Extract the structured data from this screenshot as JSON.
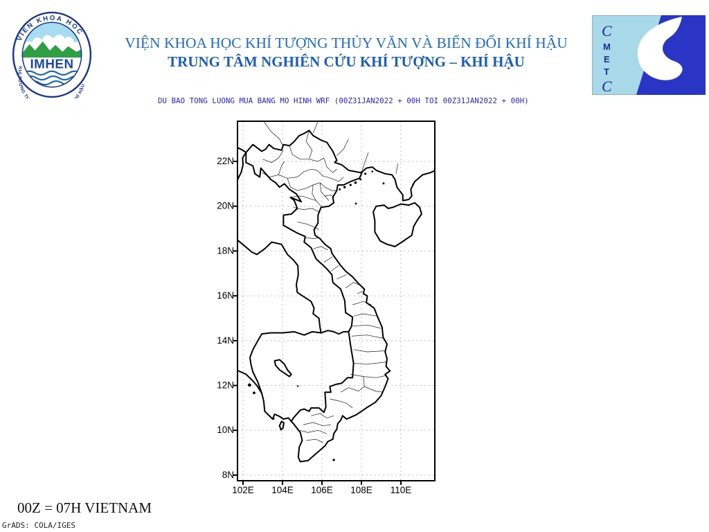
{
  "header": {
    "line1": "VIỆN KHOA HỌC KHÍ TƯỢNG THỦY VĂN VÀ BIẾN ĐỔI KHÍ HẬU",
    "line2": "TRUNG TÂM NGHIÊN CỨU KHÍ TƯỢNG – KHÍ HẬU"
  },
  "imhen_logo": {
    "arc_top": "VIEN KHOA HOC",
    "arc_bottom": "KHÍ TƯỢNG THỦY VĂN VÀ BIẾN ĐỔI KHÍ HẬU",
    "center": "IMHEN"
  },
  "cmetc_logo": {
    "letters": [
      "C",
      "M",
      "E",
      "T",
      "C"
    ]
  },
  "plot": {
    "title": "DU BAO TONG LUONG MUA BANG MO HINH WRF (00Z31JAN2022 + 00H TOI 00Z31JAN2022 + 00H)"
  },
  "map": {
    "lat_ticks": [
      "22N",
      "20N",
      "18N",
      "16N",
      "14N",
      "12N",
      "10N",
      "8N"
    ],
    "lon_ticks": [
      "102E",
      "104E",
      "106E",
      "108E",
      "110E"
    ],
    "lat_values": [
      22,
      20,
      18,
      16,
      14,
      12,
      10,
      8
    ],
    "lon_values": [
      102,
      104,
      106,
      108,
      110
    ]
  },
  "footer": {
    "note": "00Z = 07H VIETNAM",
    "credit": "GrADS: COLA/IGES"
  },
  "colors": {
    "header_blue": "#1b6ec8",
    "title_blue": "#2323d6",
    "logo_navy": "#16368f",
    "cmetc_lightblue": "#a7d9e8",
    "cmetc_darkblue": "#2b35c5",
    "grid_gray": "#bdbdbd"
  }
}
